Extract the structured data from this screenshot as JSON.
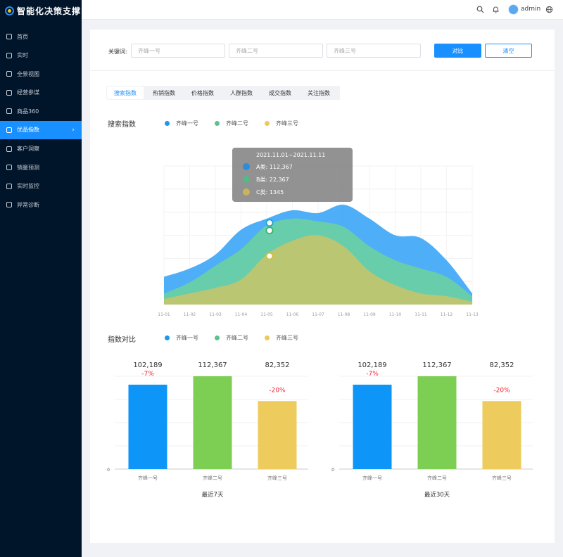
{
  "app": {
    "title": "智能化决策支撑"
  },
  "sidebar": {
    "items": [
      {
        "label": "首页",
        "icon": "home-icon"
      },
      {
        "label": "实时",
        "icon": "edit-icon"
      },
      {
        "label": "全景视图",
        "icon": "grid-icon"
      },
      {
        "label": "经营参谋",
        "icon": "book-icon"
      },
      {
        "label": "商品360",
        "icon": "box-icon"
      },
      {
        "label": "优品指数",
        "icon": "warning-icon",
        "active": true
      },
      {
        "label": "客户洞察",
        "icon": "user-icon"
      },
      {
        "label": "销量预测",
        "icon": "trend-icon"
      },
      {
        "label": "实时监控",
        "icon": "location-icon"
      },
      {
        "label": "异常诊断",
        "icon": "diagnose-icon"
      }
    ]
  },
  "topbar": {
    "user": "admin",
    "icons": [
      "search-icon",
      "bell-icon",
      "globe-icon"
    ]
  },
  "filter": {
    "keyword_label": "关键词:",
    "inputs": [
      {
        "placeholder": "齐峰一号"
      },
      {
        "placeholder": "齐峰二号"
      },
      {
        "placeholder": "齐峰三号"
      }
    ],
    "compare_label": "对比",
    "clear_label": "清空"
  },
  "tabs": [
    "搜索指数",
    "热销指数",
    "价格指数",
    "人群指数",
    "成交指数",
    "关注指数"
  ],
  "search_section": {
    "title": "搜索指数"
  },
  "compare_section": {
    "title": "指数对比"
  },
  "legend": [
    {
      "name": "齐峰一号",
      "color": "#1e96f0"
    },
    {
      "name": "齐峰二号",
      "color": "#5fc18e"
    },
    {
      "name": "齐峰三号",
      "color": "#ecc95c"
    }
  ],
  "tooltip": {
    "title": "2021.11.01~2021.11.11",
    "rows": [
      {
        "label": "A类:",
        "value": "112,367",
        "color": "#2c8cdc"
      },
      {
        "label": "B类:",
        "value": "22,367",
        "color": "#55b888"
      },
      {
        "label": "C类:",
        "value": "1345",
        "color": "#c9b35c"
      }
    ]
  },
  "chart_data": [
    {
      "type": "area",
      "x": [
        "11-01",
        "11-02",
        "11-03",
        "11-04",
        "11-05",
        "11-06",
        "11-07",
        "11-08",
        "11-09",
        "11-10",
        "11-11",
        "11-12",
        "11-13"
      ],
      "series": [
        {
          "name": "齐峰一号",
          "color": "#3fa7f6",
          "values": [
            20,
            26,
            36,
            54,
            62,
            68,
            66,
            72,
            62,
            50,
            48,
            32,
            8
          ]
        },
        {
          "name": "齐峰二号",
          "color": "#6acfa4",
          "values": [
            8,
            16,
            28,
            40,
            57,
            62,
            60,
            56,
            42,
            32,
            26,
            20,
            6
          ]
        },
        {
          "name": "齐峰三号",
          "color": "#c2c56d",
          "values": [
            4,
            8,
            12,
            18,
            36,
            46,
            50,
            42,
            24,
            14,
            8,
            6,
            2
          ]
        }
      ]
    },
    {
      "type": "bar",
      "title": "最近7天",
      "categories": [
        "齐峰一号",
        "齐峰二号",
        "齐峰三号"
      ],
      "values": [
        102189,
        112367,
        82352
      ],
      "value_labels": [
        "102,189",
        "112,367",
        "82,352"
      ],
      "changes": [
        "-7%",
        "",
        "-20%"
      ],
      "colors": [
        "#0d96f8",
        "#7ccf52",
        "#edcb5d"
      ],
      "y_tick": "0"
    },
    {
      "type": "bar",
      "title": "最近30天",
      "categories": [
        "齐峰一号",
        "齐峰二号",
        "齐峰三号"
      ],
      "values": [
        102189,
        112367,
        82352
      ],
      "value_labels": [
        "102,189",
        "112,367",
        "82,352"
      ],
      "changes": [
        "-7%",
        "",
        "-20%"
      ],
      "colors": [
        "#0d96f8",
        "#7ccf52",
        "#edcb5d"
      ],
      "y_tick": "0"
    }
  ]
}
